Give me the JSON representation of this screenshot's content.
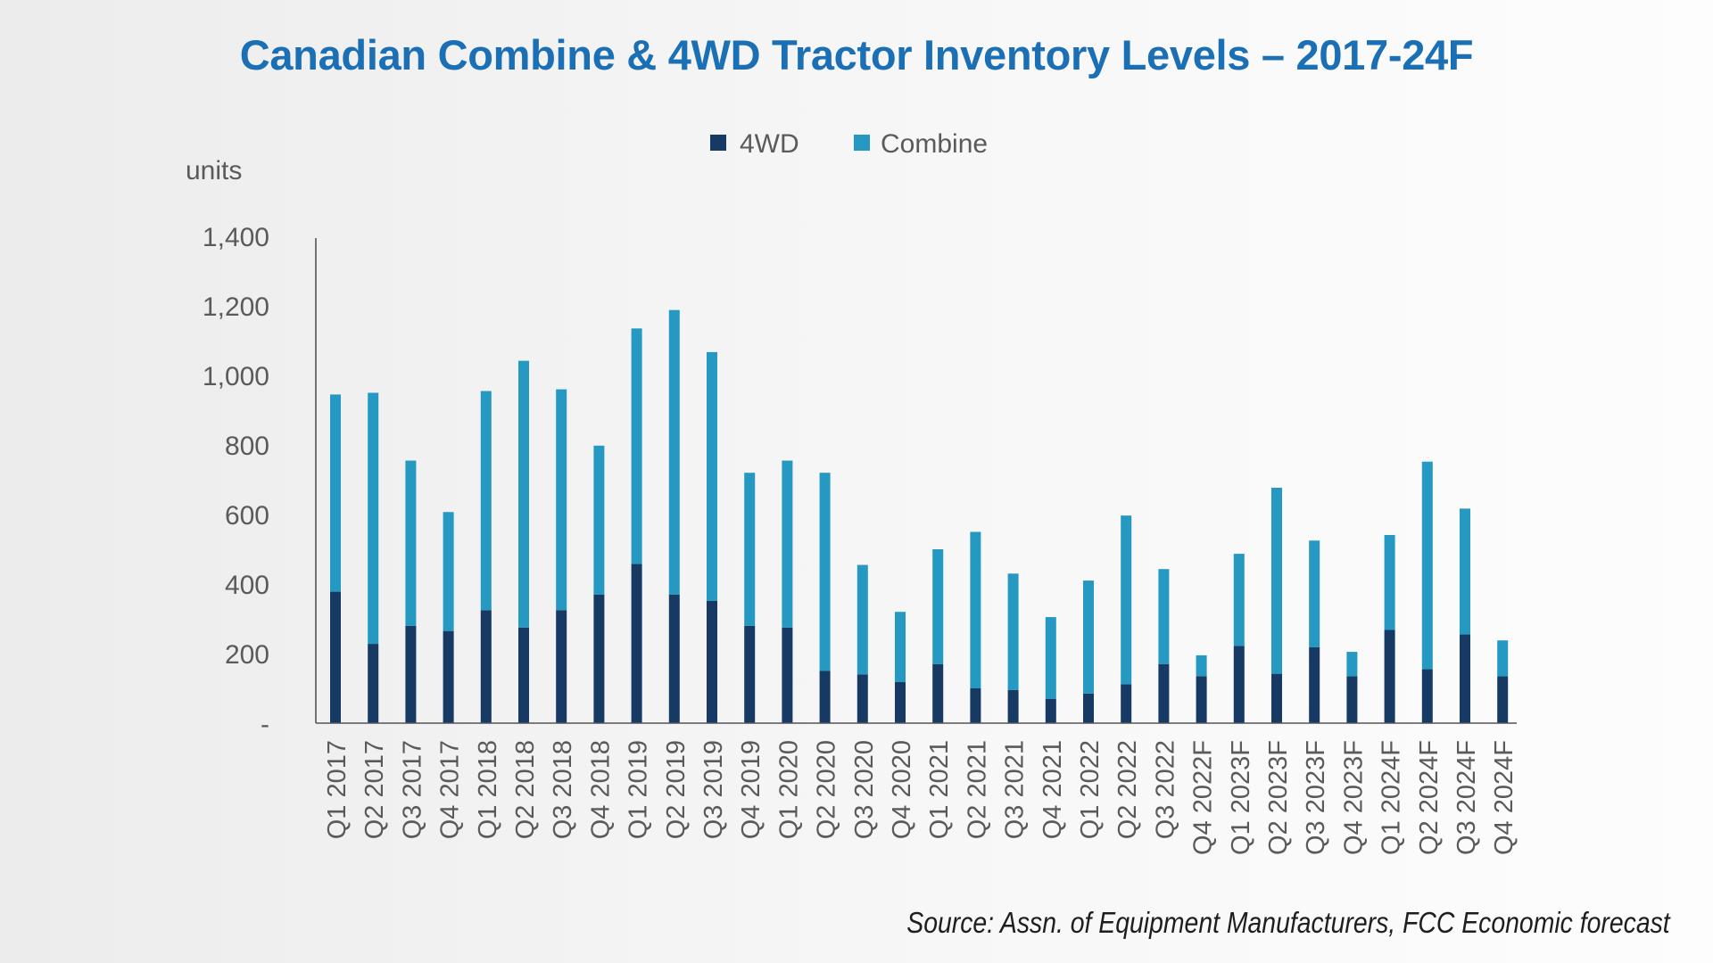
{
  "header": {
    "title": "Canadian Combine & 4WD Tractor Inventory Levels – 2017-24F"
  },
  "footer": {
    "source": "Source: Assn. of Equipment Manufacturers, FCC Economic forecast"
  },
  "colors": {
    "title": "#1a6fb5",
    "4wd": "#163a63",
    "combine": "#2699c3",
    "axis": "#555555"
  },
  "chart_data": {
    "type": "bar",
    "stacked": true,
    "title": "Canadian Combine & 4WD Tractor Inventory Levels – 2017-24F",
    "ylabel": "units",
    "xlabel": "",
    "ylim": [
      0,
      1400
    ],
    "yticks": [
      0,
      200,
      400,
      600,
      800,
      1000,
      1200,
      1400
    ],
    "ytick_labels": [
      "-",
      "200",
      "400",
      "600",
      "800",
      "1,000",
      "1,200",
      "1,400"
    ],
    "legend_position": "top-center",
    "grid": false,
    "categories": [
      "Q1 2017",
      "Q2 2017",
      "Q3 2017",
      "Q4 2017",
      "Q1 2018",
      "Q2 2018",
      "Q3 2018",
      "Q4 2018",
      "Q1 2019",
      "Q2 2019",
      "Q3 2019",
      "Q4 2019",
      "Q1 2020",
      "Q2 2020",
      "Q3 2020",
      "Q4 2020",
      "Q1 2021",
      "Q2 2021",
      "Q3 2021",
      "Q4 2021",
      "Q1 2022",
      "Q2 2022",
      "Q3 2022",
      "Q4 2022F",
      "Q1 2023F",
      "Q2 2023F",
      "Q3 2023F",
      "Q4 2023F",
      "Q1 2024F",
      "Q2 2024F",
      "Q3 2024F",
      "Q4 2024F"
    ],
    "series": [
      {
        "name": "4WD",
        "color": "#163a63",
        "values": [
          378,
          228,
          280,
          265,
          325,
          275,
          325,
          370,
          458,
          370,
          352,
          280,
          275,
          150,
          140,
          118,
          170,
          100,
          95,
          70,
          85,
          112,
          170,
          135,
          222,
          142,
          218,
          135,
          268,
          155,
          255,
          135
        ]
      },
      {
        "name": "Combine",
        "color": "#2699c3",
        "values": [
          567,
          722,
          475,
          342,
          630,
          767,
          635,
          428,
          677,
          818,
          715,
          440,
          480,
          570,
          315,
          202,
          330,
          450,
          335,
          235,
          325,
          485,
          273,
          60,
          265,
          535,
          307,
          70,
          273,
          597,
          362,
          103
        ]
      }
    ]
  }
}
